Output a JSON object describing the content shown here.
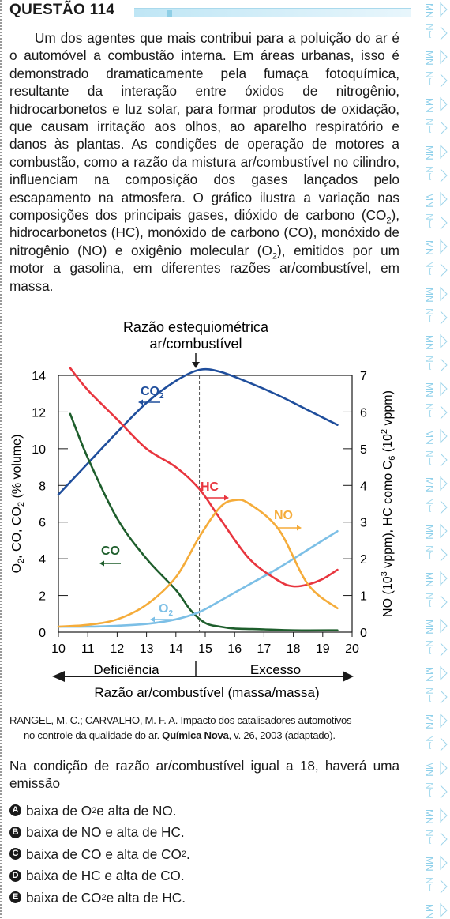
{
  "header": {
    "title": "QUESTÃO 114"
  },
  "intro": {
    "segments": [
      "Um dos agentes que mais contribui para a poluição do ar é o automóvel a combustão interna. Em áreas urbanas, isso é demonstrado dramaticamente pela fumaça fotoquímica, resultante da interação entre óxidos de nitrogênio, hidrocarbonetos e luz solar, para formar produtos de oxidação, que causam irritação aos olhos, ao aparelho respiratório e danos às plantas. As condições de operação de motores a combustão, como a razão da mistura ar/combustível no cilindro, influenciam na composição dos gases lançados pelo escapamento na atmosfera. O gráfico ilustra a variação nas composições dos principais gases, dióxido de carbono (CO",
      "2",
      "), hidrocarbonetos (HC), monóxido de carbono (CO), monóxido de nitrogênio (NO) e oxigênio molecular (O",
      "2",
      "), emitidos por um motor a gasolina, em diferentes razões ar/combustível, em massa."
    ]
  },
  "chart_data": {
    "type": "line",
    "top_label_line1": "Razão estequiométrica",
    "top_label_line2": "ar/combustível",
    "stoichiometric_x": 14.8,
    "xlim": [
      10,
      20
    ],
    "x_ticks": [
      "10",
      "11",
      "12",
      "13",
      "14",
      "15",
      "16",
      "17",
      "18",
      "19",
      "20"
    ],
    "y_left_ticks": [
      "0",
      "2",
      "4",
      "6",
      "8",
      "10",
      "12",
      "14"
    ],
    "y_left_lim": [
      0,
      14
    ],
    "y_right_ticks": [
      "0",
      "1",
      "2",
      "3",
      "4",
      "5",
      "6",
      "7"
    ],
    "y_right_lim": [
      0,
      7
    ],
    "ylabel_left": {
      "a": "O",
      "a_sub": "2",
      "b": ", CO, CO",
      "b_sub": "2",
      "c": " (% volume)"
    },
    "ylabel_right": {
      "a": "NO (10",
      "a_sup": "3",
      "b": " vppm), HC como C",
      "b_sub": "6",
      "c": " (10",
      "c_sup": "2",
      "d": " vppm)"
    },
    "xlabel": "Razão ar/combustível (massa/massa)",
    "deficiency_label": "Deficiência",
    "excess_label": "Excesso",
    "series": [
      {
        "name": "CO",
        "sub": "2",
        "axis": "left",
        "color": "#1f4e9c",
        "x": [
          10,
          11,
          12,
          13,
          14,
          14.8,
          15.5,
          16.5,
          17.5,
          18.5,
          19.5
        ],
        "y": [
          7.5,
          9.2,
          10.9,
          12.5,
          13.7,
          14.3,
          14.2,
          13.6,
          12.9,
          12.1,
          11.3
        ]
      },
      {
        "name": "CO",
        "sub": "",
        "axis": "left",
        "color": "#1e5e2c",
        "x": [
          10.4,
          11,
          12,
          13,
          14,
          14.5,
          15,
          15.5,
          16,
          17,
          18,
          19.5
        ],
        "y": [
          11.9,
          9.5,
          6.2,
          4.0,
          2.3,
          1.2,
          0.5,
          0.3,
          0.2,
          0.15,
          0.1,
          0.1
        ]
      },
      {
        "name": "O",
        "sub": "2",
        "axis": "left",
        "color": "#7cbfe6",
        "x": [
          10,
          11,
          12,
          13,
          14,
          14.8,
          15.5,
          16.5,
          17.5,
          18.5,
          19.5
        ],
        "y": [
          0.3,
          0.3,
          0.35,
          0.45,
          0.7,
          1.1,
          1.7,
          2.6,
          3.5,
          4.5,
          5.5
        ]
      },
      {
        "name": "HC",
        "sub": "",
        "axis": "right",
        "color": "#e8353e",
        "x": [
          10.4,
          11,
          12,
          13,
          14,
          14.8,
          15.5,
          16.5,
          17.5,
          18,
          18.5,
          19,
          19.5
        ],
        "y": [
          7.2,
          6.6,
          5.8,
          5.0,
          4.5,
          3.9,
          3.1,
          2.0,
          1.4,
          1.25,
          1.3,
          1.45,
          1.7
        ]
      },
      {
        "name": "NO",
        "sub": "",
        "axis": "right",
        "color": "#f5ac3a",
        "x": [
          10,
          11,
          12,
          13,
          14,
          14.8,
          15.5,
          16,
          16.5,
          17.5,
          18.5,
          19.5
        ],
        "y": [
          0.15,
          0.2,
          0.35,
          0.75,
          1.5,
          2.6,
          3.4,
          3.6,
          3.5,
          2.8,
          1.3,
          0.65
        ]
      }
    ]
  },
  "source": {
    "line1": "RANGEL, M. C.; CARVALHO, M. F. A. Impacto dos catalisadores automotivos",
    "line2_pre": "no controle da qualidade do ar. ",
    "line2_bold": "Química Nova",
    "line2_post": ", v. 26, 2003 (adaptado)."
  },
  "stem": "Na condição de razão ar/combustível igual a 18, haverá uma emissão",
  "options": [
    {
      "letter": "A",
      "pre": "baixa de O",
      "sub": "2",
      "post": " e alta de NO."
    },
    {
      "letter": "B",
      "pre": "baixa de NO e alta de HC.",
      "sub": "",
      "post": ""
    },
    {
      "letter": "C",
      "pre": "baixa de CO e alta de CO",
      "sub": "2",
      "post": "."
    },
    {
      "letter": "D",
      "pre": "baixa de HC e alta de CO.",
      "sub": "",
      "post": ""
    },
    {
      "letter": "E",
      "pre": "baixa de CO",
      "sub": "2",
      "post": " e alta de HC."
    }
  ],
  "colors": {
    "badge": "#1a1a1a",
    "side_pattern": "#8fd0ea",
    "header_bar": "#bfe6f5"
  }
}
